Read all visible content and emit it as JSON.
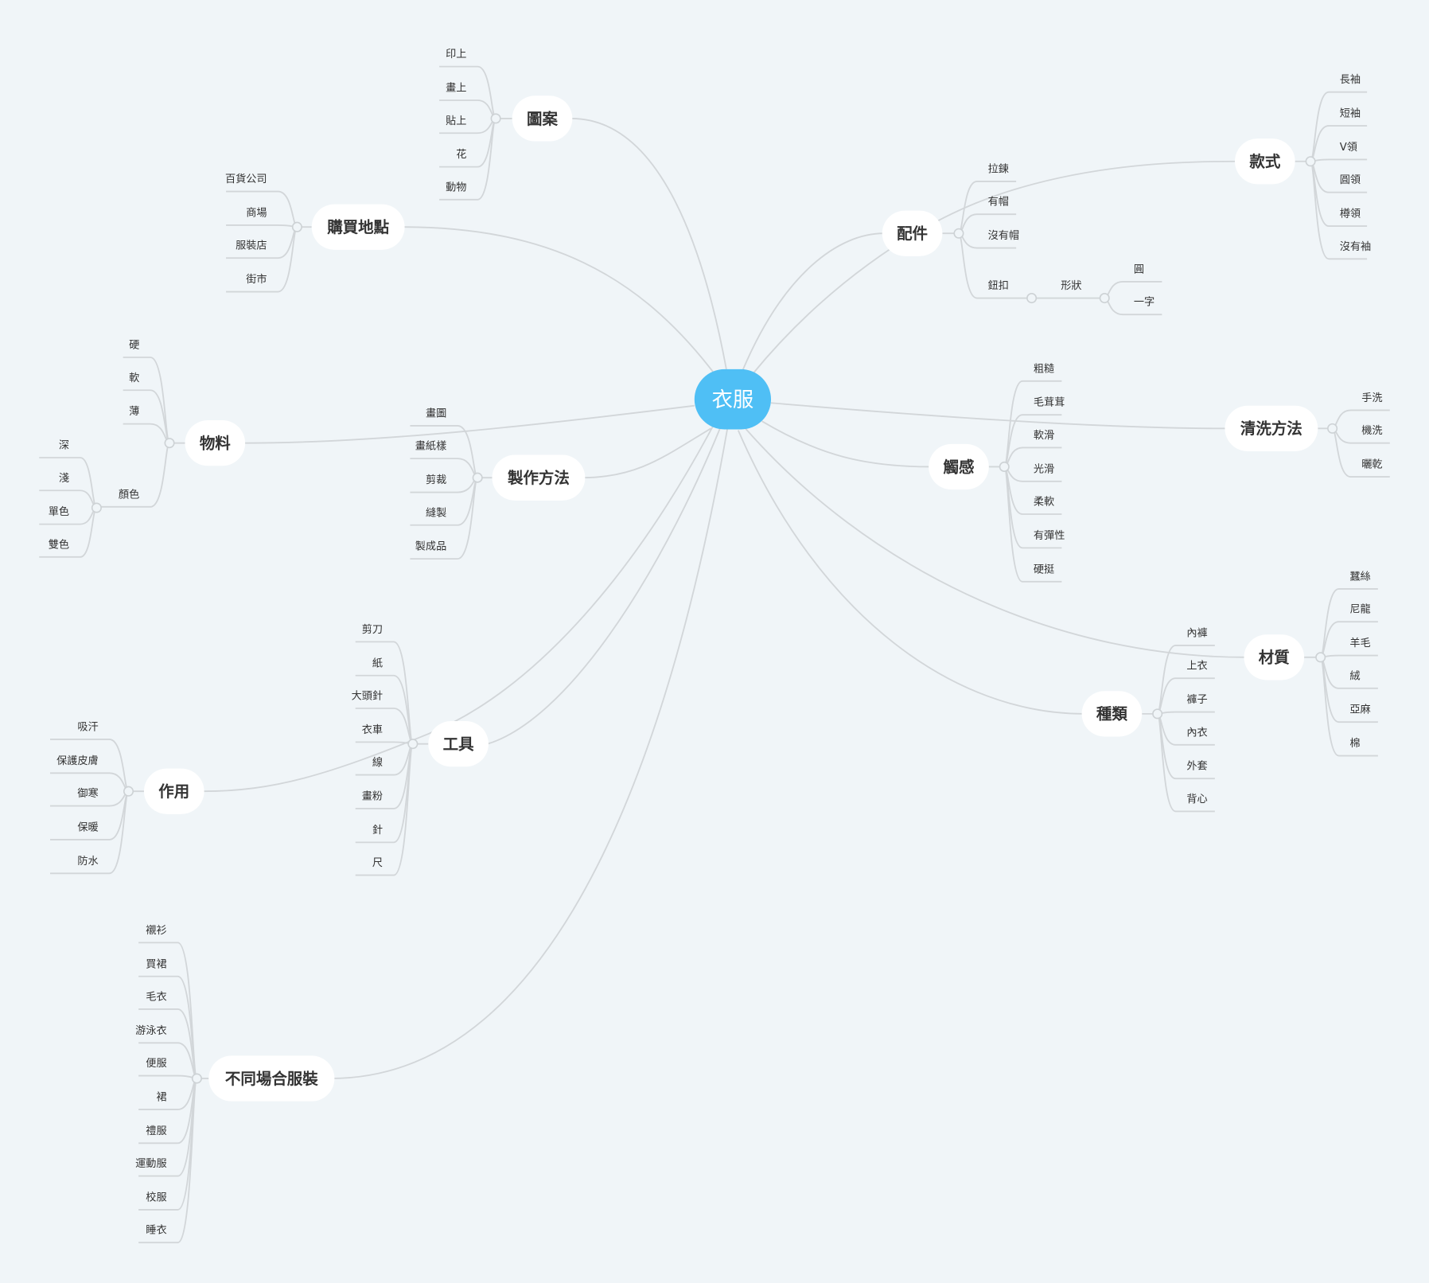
{
  "colors": {
    "background": "#f0f5f8",
    "center": "#4fbff5",
    "node": "#ffffff",
    "line": "#d2d6d9",
    "text": "#333333"
  },
  "center": {
    "label": "衣服"
  },
  "branches": [
    {
      "label": "圖案",
      "children": [
        {
          "label": "印上"
        },
        {
          "label": "畫上"
        },
        {
          "label": "貼上"
        },
        {
          "label": "花"
        },
        {
          "label": "動物"
        }
      ]
    },
    {
      "label": "購買地點",
      "children": [
        {
          "label": "百貨公司"
        },
        {
          "label": "商場"
        },
        {
          "label": "服裝店"
        },
        {
          "label": "街市"
        }
      ]
    },
    {
      "label": "物料",
      "children": [
        {
          "label": "硬"
        },
        {
          "label": "軟"
        },
        {
          "label": "薄"
        },
        {
          "label": "顏色",
          "children": [
            {
              "label": "深"
            },
            {
              "label": "淺"
            },
            {
              "label": "單色"
            },
            {
              "label": "雙色"
            }
          ]
        }
      ]
    },
    {
      "label": "製作方法",
      "children": [
        {
          "label": "畫圖"
        },
        {
          "label": "畫紙樣"
        },
        {
          "label": "剪裁"
        },
        {
          "label": "縫製"
        },
        {
          "label": "製成品"
        }
      ]
    },
    {
      "label": "工具",
      "children": [
        {
          "label": "剪刀"
        },
        {
          "label": "紙"
        },
        {
          "label": "大頭針"
        },
        {
          "label": "衣車"
        },
        {
          "label": "線"
        },
        {
          "label": "畫粉"
        },
        {
          "label": "針"
        },
        {
          "label": "尺"
        }
      ]
    },
    {
      "label": "作用",
      "children": [
        {
          "label": "吸汗"
        },
        {
          "label": "保護皮膚"
        },
        {
          "label": "御寒"
        },
        {
          "label": "保暖"
        },
        {
          "label": "防水"
        }
      ]
    },
    {
      "label": "不同場合服裝",
      "children": [
        {
          "label": "襯衫"
        },
        {
          "label": "買裙"
        },
        {
          "label": "毛衣"
        },
        {
          "label": "游泳衣"
        },
        {
          "label": "便服"
        },
        {
          "label": "裙"
        },
        {
          "label": "禮服"
        },
        {
          "label": "運動服"
        },
        {
          "label": "校服"
        },
        {
          "label": "睡衣"
        }
      ]
    },
    {
      "label": "配件",
      "children": [
        {
          "label": "拉鍊"
        },
        {
          "label": "有帽"
        },
        {
          "label": "沒有帽"
        },
        {
          "label": "鈕扣",
          "children": [
            {
              "label": "形狀",
              "children": [
                {
                  "label": "圓"
                },
                {
                  "label": "一字"
                }
              ]
            }
          ]
        }
      ]
    },
    {
      "label": "款式",
      "children": [
        {
          "label": "長袖"
        },
        {
          "label": "短袖"
        },
        {
          "label": "V領"
        },
        {
          "label": "圓領"
        },
        {
          "label": "樽領"
        },
        {
          "label": "沒有袖"
        }
      ]
    },
    {
      "label": "觸感",
      "children": [
        {
          "label": "粗糙"
        },
        {
          "label": "毛茸茸"
        },
        {
          "label": "軟滑"
        },
        {
          "label": "光滑"
        },
        {
          "label": "柔軟"
        },
        {
          "label": "有彈性"
        },
        {
          "label": "硬挺"
        }
      ]
    },
    {
      "label": "清洗方法",
      "children": [
        {
          "label": "手洗"
        },
        {
          "label": "機洗"
        },
        {
          "label": "曬乾"
        }
      ]
    },
    {
      "label": "材質",
      "children": [
        {
          "label": "蠶絲"
        },
        {
          "label": "尼龍"
        },
        {
          "label": "羊毛"
        },
        {
          "label": "絨"
        },
        {
          "label": "亞麻"
        },
        {
          "label": "棉"
        }
      ]
    },
    {
      "label": "種類",
      "children": [
        {
          "label": "內褲"
        },
        {
          "label": "上衣"
        },
        {
          "label": "褲子"
        },
        {
          "label": "內衣"
        },
        {
          "label": "外套"
        },
        {
          "label": "背心"
        }
      ]
    }
  ]
}
